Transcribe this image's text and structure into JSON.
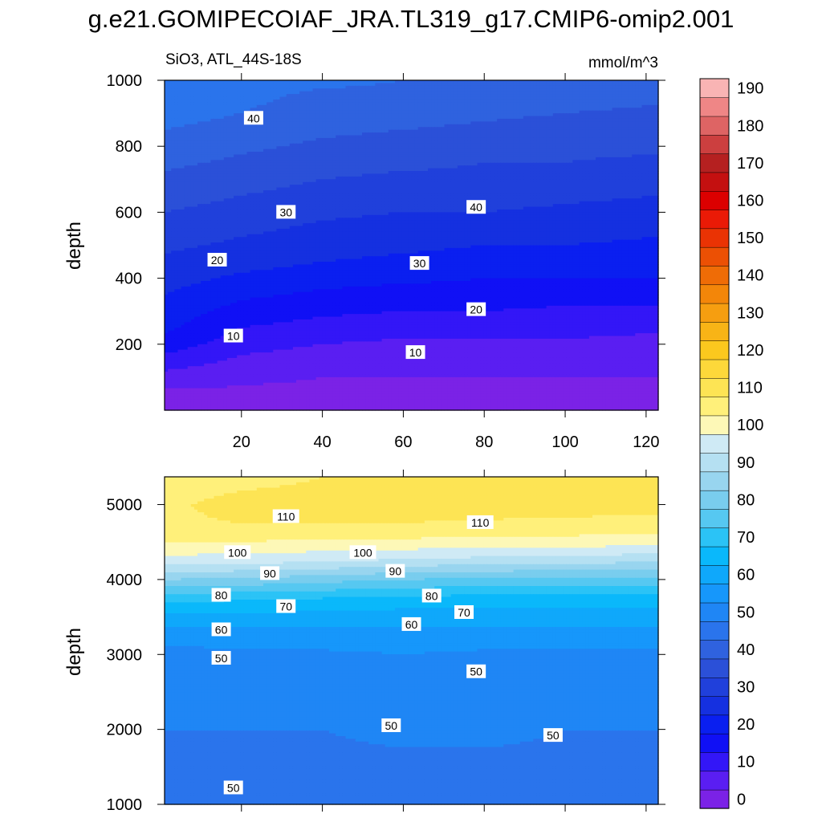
{
  "figure": {
    "title": "g.e21.GOMIPECOIAF_JRA.TL319_g17.CMIP6-omip2.001",
    "subtitle_left": "SiO3, ATL_44S-18S",
    "units": "mmol/m^3"
  },
  "colorbar": {
    "levels": [
      0,
      5,
      10,
      15,
      20,
      25,
      30,
      35,
      40,
      45,
      50,
      55,
      60,
      65,
      70,
      75,
      80,
      85,
      90,
      95,
      100,
      105,
      110,
      115,
      120,
      125,
      130,
      135,
      140,
      145,
      150,
      155,
      160,
      165,
      170,
      175,
      180,
      185,
      190
    ],
    "tick_labels": [
      "0",
      "10",
      "20",
      "30",
      "40",
      "50",
      "60",
      "70",
      "80",
      "90",
      "100",
      "110",
      "120",
      "130",
      "140",
      "150",
      "160",
      "170",
      "180",
      "190"
    ],
    "colors": [
      "#7b22e6",
      "#5a1ef2",
      "#3316f7",
      "#1010f5",
      "#0a1ff0",
      "#1530e0",
      "#2040db",
      "#2b50d8",
      "#2f62df",
      "#2a74ec",
      "#1f86f5",
      "#1697fb",
      "#0fa8fb",
      "#0ab8fb",
      "#2bc3f6",
      "#56c8f1",
      "#79cdee",
      "#98d5ef",
      "#b5e0f2",
      "#cfeaf5",
      "#fdf8b7",
      "#fff07a",
      "#fde454",
      "#fdd83a",
      "#fbc81e",
      "#f8b416",
      "#f69e10",
      "#f38609",
      "#ef6c06",
      "#ec5004",
      "#ea3304",
      "#ea1a06",
      "#dc0000",
      "#c41010",
      "#b52020",
      "#cc3f3f",
      "#de6464",
      "#ef8686",
      "#f9b4b4"
    ]
  },
  "chart_data": [
    {
      "type": "contour",
      "panel": "upper",
      "ylabel": "depth",
      "xlabel": "",
      "xlim": [
        1,
        123
      ],
      "ylim": [
        1000,
        0
      ],
      "yticks": [
        200,
        400,
        600,
        800,
        1000
      ],
      "xticks": [
        20,
        40,
        60,
        80,
        100,
        120
      ],
      "x": [
        1,
        20,
        40,
        60,
        80,
        100,
        123
      ],
      "y": [
        10,
        50,
        100,
        150,
        200,
        250,
        300,
        350,
        400,
        450,
        500,
        550,
        600,
        650,
        700,
        750,
        800,
        850,
        900,
        950,
        1000
      ],
      "field": [
        [
          2,
          3,
          4,
          4,
          4,
          4,
          4
        ],
        [
          4,
          4,
          4,
          4,
          4,
          4,
          4
        ],
        [
          8,
          6,
          5,
          5,
          5,
          5,
          5
        ],
        [
          13,
          9,
          7,
          6,
          6,
          6,
          6
        ],
        [
          18,
          12,
          10,
          9,
          9,
          9,
          8
        ],
        [
          21,
          15,
          13,
          12,
          12,
          12,
          11
        ],
        [
          23,
          18,
          16,
          15,
          15,
          14,
          14
        ],
        [
          25,
          21,
          19,
          18,
          18,
          17,
          17
        ],
        [
          27,
          24,
          22,
          21,
          20,
          20,
          20
        ],
        [
          29,
          27,
          25,
          24,
          23,
          23,
          22
        ],
        [
          31,
          29,
          27,
          26,
          25,
          25,
          24
        ],
        [
          33,
          31,
          29,
          28,
          28,
          27,
          26
        ],
        [
          35,
          33,
          31,
          30,
          30,
          29,
          28
        ],
        [
          37,
          35,
          33,
          32,
          32,
          31,
          30
        ],
        [
          39,
          37,
          35,
          34,
          34,
          33,
          32
        ],
        [
          41,
          39,
          37,
          36,
          35,
          35,
          34
        ],
        [
          43,
          41,
          39,
          38,
          37,
          36,
          36
        ],
        [
          45,
          43,
          41,
          40,
          39,
          38,
          38
        ],
        [
          47,
          45,
          43,
          42,
          41,
          40,
          39
        ],
        [
          48,
          46,
          44,
          44,
          43,
          42,
          41
        ],
        [
          49,
          47,
          46,
          45,
          45,
          44,
          43
        ]
      ],
      "contour_labels": [
        {
          "text": "10",
          "x": 18,
          "y": 225
        },
        {
          "text": "10",
          "x": 63,
          "y": 175
        },
        {
          "text": "20",
          "x": 78,
          "y": 305
        },
        {
          "text": "20",
          "x": 14,
          "y": 455
        },
        {
          "text": "30",
          "x": 64,
          "y": 445
        },
        {
          "text": "30",
          "x": 31,
          "y": 600
        },
        {
          "text": "40",
          "x": 78,
          "y": 615
        },
        {
          "text": "40",
          "x": 23,
          "y": 885
        }
      ]
    },
    {
      "type": "contour",
      "panel": "lower",
      "ylabel": "depth",
      "xlabel": "",
      "xlim": [
        1,
        123
      ],
      "ylim": [
        5370,
        1000
      ],
      "yticks": [
        1000,
        2000,
        3000,
        4000,
        5000
      ],
      "x": [
        1,
        20,
        40,
        60,
        80,
        100,
        123
      ],
      "y": [
        1000,
        1500,
        2000,
        2500,
        3000,
        3250,
        3500,
        3750,
        4000,
        4250,
        4500,
        4750,
        5000,
        5370
      ],
      "field": [
        [
          45,
          46,
          47,
          47,
          47,
          47,
          47
        ],
        [
          48,
          49,
          49,
          49,
          49,
          49,
          49
        ],
        [
          50,
          50,
          50,
          51,
          51,
          50,
          50
        ],
        [
          51,
          51,
          52,
          52,
          52,
          52,
          52
        ],
        [
          53,
          54,
          54,
          55,
          54,
          54,
          54
        ],
        [
          57,
          58,
          58,
          58,
          58,
          58,
          58
        ],
        [
          63,
          63,
          63,
          62,
          62,
          62,
          62
        ],
        [
          72,
          71,
          70,
          69,
          68,
          68,
          68
        ],
        [
          85,
          84,
          82,
          80,
          79,
          78,
          78
        ],
        [
          98,
          97,
          96,
          94,
          93,
          92,
          91
        ],
        [
          105,
          105,
          104,
          104,
          103,
          103,
          102
        ],
        [
          109,
          110,
          110,
          110,
          109,
          109,
          109
        ],
        [
          109,
          112,
          112,
          113,
          114,
          112,
          111
        ],
        [
          106,
          108,
          110,
          111,
          112,
          111,
          110
        ]
      ],
      "contour_labels": [
        {
          "text": "50",
          "x": 18,
          "y": 1220
        },
        {
          "text": "50",
          "x": 57,
          "y": 2050
        },
        {
          "text": "50",
          "x": 97,
          "y": 1920
        },
        {
          "text": "50",
          "x": 15,
          "y": 2950
        },
        {
          "text": "50",
          "x": 78,
          "y": 2770
        },
        {
          "text": "60",
          "x": 15,
          "y": 3330
        },
        {
          "text": "60",
          "x": 62,
          "y": 3400
        },
        {
          "text": "70",
          "x": 31,
          "y": 3640
        },
        {
          "text": "70",
          "x": 75,
          "y": 3560
        },
        {
          "text": "80",
          "x": 15,
          "y": 3790
        },
        {
          "text": "80",
          "x": 67,
          "y": 3780
        },
        {
          "text": "90",
          "x": 27,
          "y": 4080
        },
        {
          "text": "90",
          "x": 58,
          "y": 4110
        },
        {
          "text": "100",
          "x": 19,
          "y": 4360
        },
        {
          "text": "100",
          "x": 50,
          "y": 4360
        },
        {
          "text": "110",
          "x": 31,
          "y": 4840
        },
        {
          "text": "110",
          "x": 79,
          "y": 4760
        }
      ]
    }
  ]
}
